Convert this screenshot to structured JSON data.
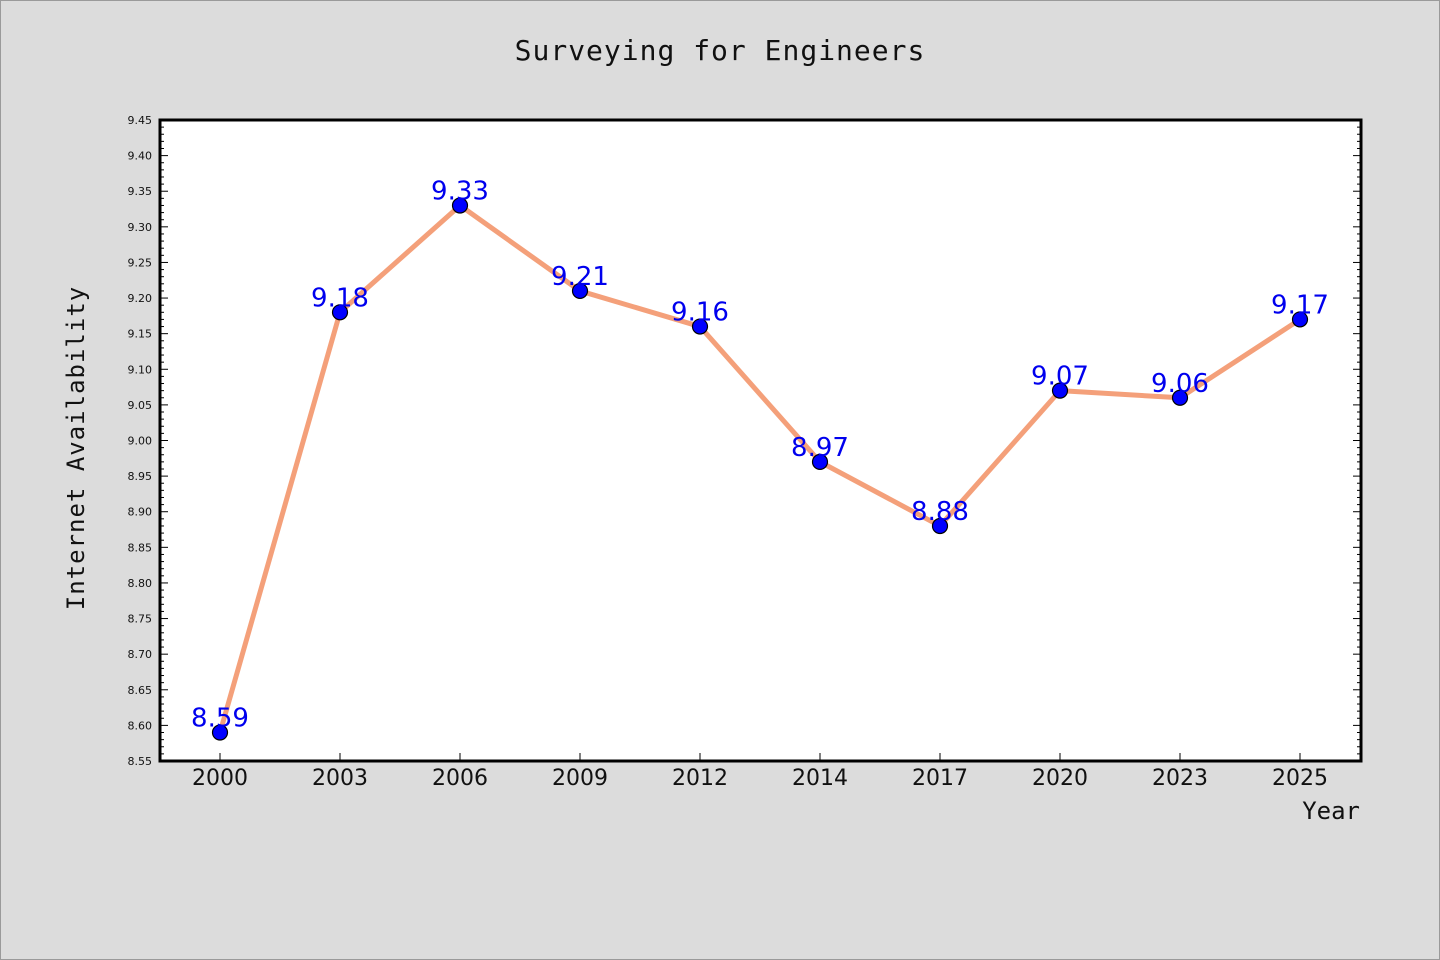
{
  "chart_data": {
    "type": "line",
    "title": "Surveying for Engineers",
    "xlabel": "Year",
    "ylabel": "Internet Availability",
    "categories": [
      "2000",
      "2003",
      "2006",
      "2009",
      "2012",
      "2014",
      "2017",
      "2020",
      "2023",
      "2025"
    ],
    "series": [
      {
        "values": [
          8.59,
          9.18,
          9.33,
          9.21,
          9.16,
          8.97,
          8.88,
          9.07,
          9.06,
          9.17
        ],
        "labels": [
          "8.59",
          "9.18",
          "9.33",
          "9.21",
          "9.16",
          "8.97",
          "8.88",
          "9.07",
          "9.06",
          "9.17"
        ],
        "line_color": "#f4a07a",
        "marker_color": "#0000ff"
      }
    ],
    "ylim": [
      8.55,
      9.45
    ],
    "yticks": [
      "8.55",
      "8.60",
      "8.65",
      "8.70",
      "8.75",
      "8.80",
      "8.85",
      "8.90",
      "8.95",
      "9.00",
      "9.05",
      "9.10",
      "9.15",
      "9.20",
      "9.25",
      "9.30",
      "9.35",
      "9.40",
      "9.45"
    ],
    "grid": false,
    "legend": "none",
    "colors": {
      "background": "#dcdcdc",
      "plot_area": "#ffffff",
      "label_color": "#0000ee"
    }
  }
}
